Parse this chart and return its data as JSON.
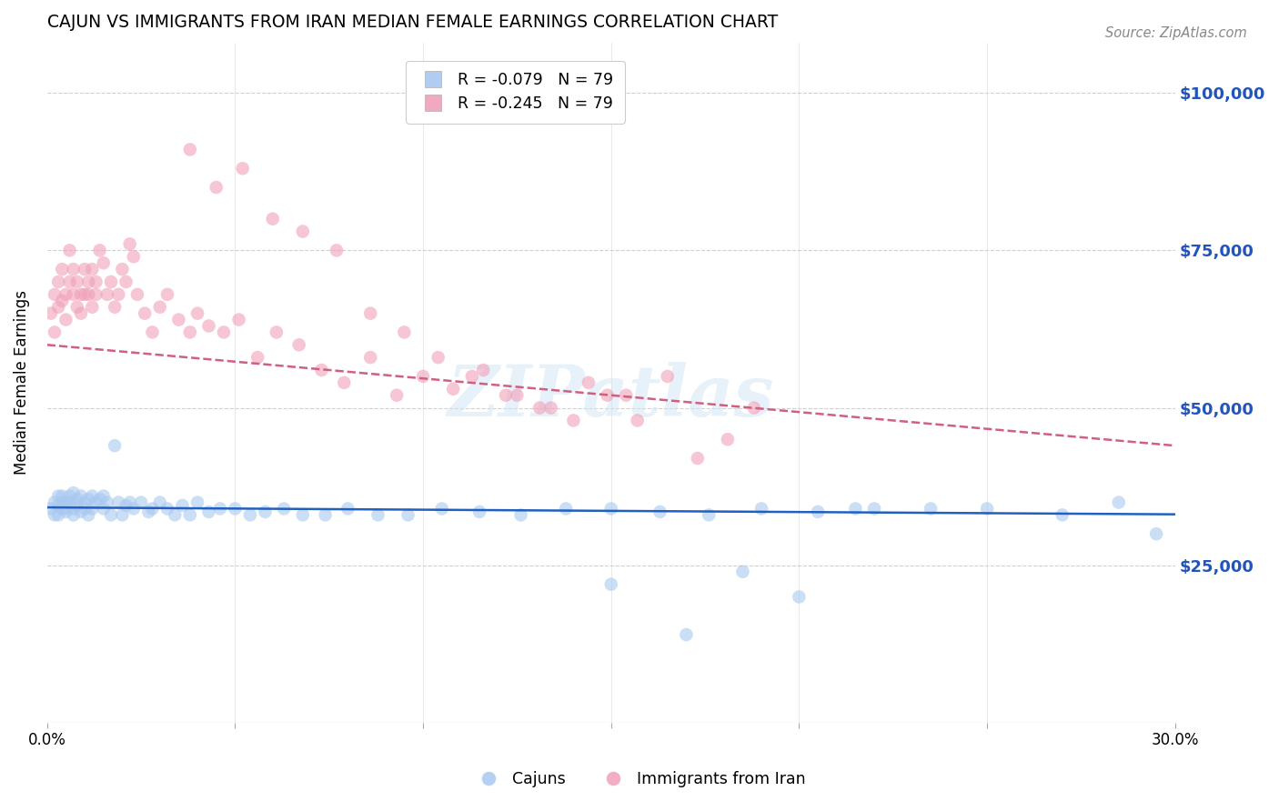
{
  "title": "CAJUN VS IMMIGRANTS FROM IRAN MEDIAN FEMALE EARNINGS CORRELATION CHART",
  "source": "Source: ZipAtlas.com",
  "ylabel": "Median Female Earnings",
  "ytick_values": [
    25000,
    50000,
    75000,
    100000
  ],
  "ymin": 0,
  "ymax": 108000,
  "xmin": 0.0,
  "xmax": 0.3,
  "cajun_color": "#a8c8f0",
  "iran_color": "#f0a0b8",
  "cajun_line_color": "#2060c0",
  "iran_line_color": "#d06080",
  "watermark": "ZIPatlas",
  "background_color": "#ffffff",
  "grid_color": "#d0d0d0",
  "right_axis_label_color": "#2255bb",
  "cajun_x": [
    0.001,
    0.002,
    0.002,
    0.003,
    0.003,
    0.003,
    0.004,
    0.004,
    0.004,
    0.005,
    0.005,
    0.005,
    0.006,
    0.006,
    0.007,
    0.007,
    0.007,
    0.008,
    0.008,
    0.009,
    0.009,
    0.01,
    0.01,
    0.011,
    0.011,
    0.012,
    0.012,
    0.013,
    0.014,
    0.015,
    0.015,
    0.016,
    0.017,
    0.018,
    0.019,
    0.02,
    0.021,
    0.022,
    0.023,
    0.025,
    0.027,
    0.028,
    0.03,
    0.032,
    0.034,
    0.036,
    0.038,
    0.04,
    0.043,
    0.046,
    0.05,
    0.054,
    0.058,
    0.063,
    0.068,
    0.074,
    0.08,
    0.088,
    0.096,
    0.105,
    0.115,
    0.126,
    0.138,
    0.15,
    0.163,
    0.176,
    0.19,
    0.205,
    0.22,
    0.235,
    0.15,
    0.17,
    0.185,
    0.2,
    0.215,
    0.25,
    0.27,
    0.285,
    0.295
  ],
  "cajun_y": [
    34000,
    35000,
    33000,
    36000,
    34500,
    33000,
    35000,
    34000,
    36000,
    35000,
    33500,
    34000,
    36000,
    35000,
    36500,
    34000,
    33000,
    35500,
    34500,
    36000,
    33500,
    35000,
    34000,
    35500,
    33000,
    36000,
    34000,
    35000,
    35500,
    36000,
    34000,
    35000,
    33000,
    44000,
    35000,
    33000,
    34500,
    35000,
    34000,
    35000,
    33500,
    34000,
    35000,
    34000,
    33000,
    34500,
    33000,
    35000,
    33500,
    34000,
    34000,
    33000,
    33500,
    34000,
    33000,
    33000,
    34000,
    33000,
    33000,
    34000,
    33500,
    33000,
    34000,
    34000,
    33500,
    33000,
    34000,
    33500,
    34000,
    34000,
    22000,
    14000,
    24000,
    20000,
    34000,
    34000,
    33000,
    35000,
    30000
  ],
  "iran_x": [
    0.001,
    0.002,
    0.002,
    0.003,
    0.003,
    0.004,
    0.004,
    0.005,
    0.005,
    0.006,
    0.006,
    0.007,
    0.007,
    0.008,
    0.008,
    0.009,
    0.009,
    0.01,
    0.01,
    0.011,
    0.011,
    0.012,
    0.012,
    0.013,
    0.013,
    0.014,
    0.015,
    0.016,
    0.017,
    0.018,
    0.019,
    0.02,
    0.021,
    0.022,
    0.023,
    0.024,
    0.026,
    0.028,
    0.03,
    0.032,
    0.035,
    0.038,
    0.04,
    0.043,
    0.047,
    0.051,
    0.056,
    0.061,
    0.067,
    0.073,
    0.079,
    0.086,
    0.093,
    0.1,
    0.108,
    0.116,
    0.125,
    0.134,
    0.144,
    0.154,
    0.038,
    0.045,
    0.052,
    0.06,
    0.068,
    0.077,
    0.086,
    0.095,
    0.104,
    0.113,
    0.122,
    0.131,
    0.14,
    0.149,
    0.157,
    0.165,
    0.173,
    0.181,
    0.188
  ],
  "iran_y": [
    65000,
    68000,
    62000,
    70000,
    66000,
    67000,
    72000,
    68000,
    64000,
    75000,
    70000,
    68000,
    72000,
    66000,
    70000,
    68000,
    65000,
    72000,
    68000,
    70000,
    68000,
    72000,
    66000,
    70000,
    68000,
    75000,
    73000,
    68000,
    70000,
    66000,
    68000,
    72000,
    70000,
    76000,
    74000,
    68000,
    65000,
    62000,
    66000,
    68000,
    64000,
    62000,
    65000,
    63000,
    62000,
    64000,
    58000,
    62000,
    60000,
    56000,
    54000,
    58000,
    52000,
    55000,
    53000,
    56000,
    52000,
    50000,
    54000,
    52000,
    91000,
    85000,
    88000,
    80000,
    78000,
    75000,
    65000,
    62000,
    58000,
    55000,
    52000,
    50000,
    48000,
    52000,
    48000,
    55000,
    42000,
    45000,
    50000
  ],
  "cajun_reg": [
    34200,
    33100
  ],
  "iran_reg": [
    60000,
    44000
  ]
}
